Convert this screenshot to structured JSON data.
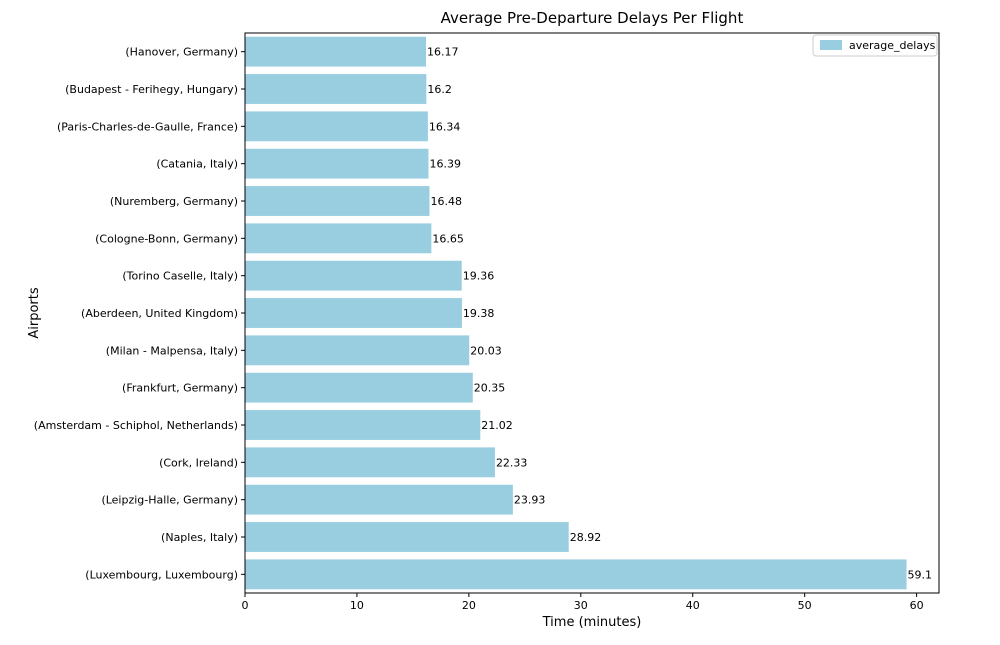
{
  "chart_data": {
    "type": "bar",
    "orientation": "horizontal",
    "title": "Average Pre-Departure Delays Per Flight",
    "xlabel": "Time (minutes)",
    "ylabel": "Airports",
    "xlim": [
      0,
      62
    ],
    "xticks": [
      0,
      10,
      20,
      30,
      40,
      50,
      60
    ],
    "grid": false,
    "legend": {
      "placement": "top-right",
      "entries": [
        "average_delays"
      ]
    },
    "bar_color": "#99cde0",
    "categories": [
      "(Hanover, Germany)",
      "(Budapest - Ferihegy, Hungary)",
      "(Paris-Charles-de-Gaulle, France)",
      "(Catania, Italy)",
      "(Nuremberg, Germany)",
      "(Cologne-Bonn, Germany)",
      "(Torino Caselle, Italy)",
      "(Aberdeen, United Kingdom)",
      "(Milan - Malpensa, Italy)",
      "(Frankfurt, Germany)",
      "(Amsterdam - Schiphol, Netherlands)",
      "(Cork, Ireland)",
      "(Leipzig-Halle, Germany)",
      "(Naples, Italy)",
      "(Luxembourg, Luxembourg)"
    ],
    "series": [
      {
        "name": "average_delays",
        "values": [
          16.17,
          16.2,
          16.34,
          16.39,
          16.48,
          16.65,
          19.36,
          19.38,
          20.03,
          20.35,
          21.02,
          22.33,
          23.93,
          28.92,
          59.1
        ],
        "labels": [
          "16.17",
          "16.2",
          "16.34",
          "16.39",
          "16.48",
          "16.65",
          "19.36",
          "19.38",
          "20.03",
          "20.35",
          "21.02",
          "22.33",
          "23.93",
          "28.92",
          "59.1"
        ]
      }
    ]
  }
}
